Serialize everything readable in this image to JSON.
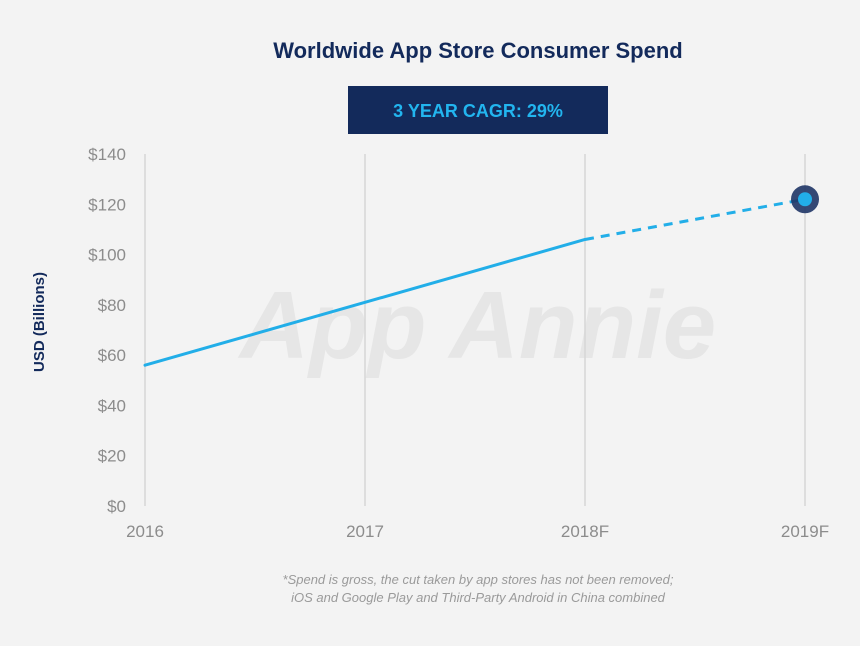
{
  "chart_data": {
    "type": "line",
    "title": "Worldwide App Store Consumer Spend",
    "badge": "3 YEAR CAGR: 29%",
    "ylabel": "USD (Billions)",
    "xlabel": "",
    "categories": [
      "2016",
      "2017",
      "2018F",
      "2019F"
    ],
    "yticks": [
      "$0",
      "$20",
      "$40",
      "$60",
      "$80",
      "$100",
      "$120",
      "$140"
    ],
    "ylim": [
      0,
      140
    ],
    "series": [
      {
        "values": [
          56,
          81,
          106,
          122
        ],
        "actual_through": "2018F",
        "forecast_from": "2018F",
        "color": "#22aee8",
        "forecast_style": "dashed",
        "endpoint_marker": "2019F"
      }
    ],
    "grid": "vertical",
    "watermark": "App Annie",
    "footnote": [
      "*Spend is gross, the cut taken by app stores has not been removed;",
      "iOS and Google Play and Third-Party Android in China combined"
    ]
  },
  "colors": {
    "background": "#f3f3f3",
    "title": "#132a5b",
    "badge_bg": "#132a5b",
    "badge_text": "#22b5ef",
    "line": "#22aee8",
    "grid": "#d6d6d6",
    "tick": "#8c8c8c",
    "marker_ring": "#1f3566"
  }
}
